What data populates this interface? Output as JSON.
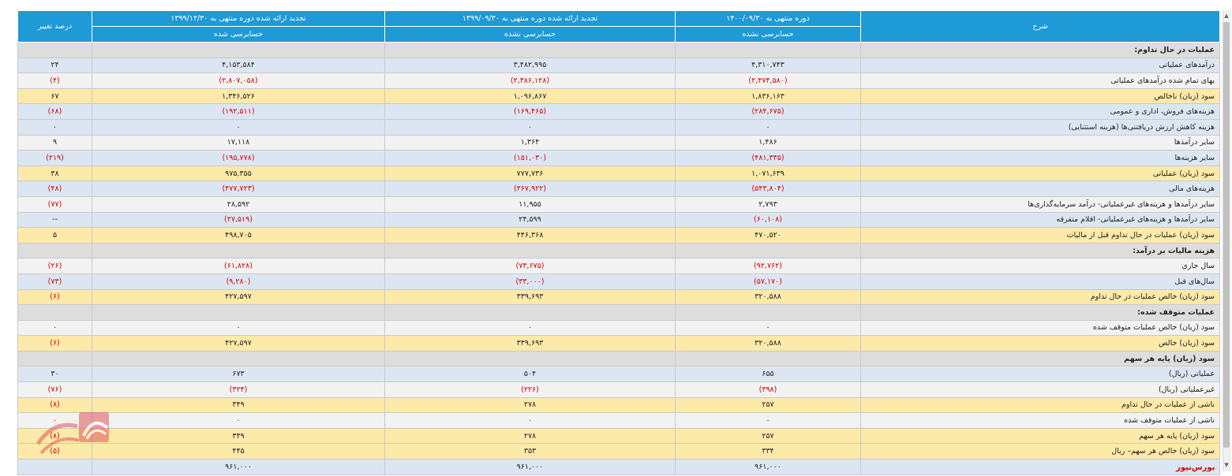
{
  "header": {
    "desc": "شرح",
    "col1_title": "دوره منتهی به ۱۴۰۰/۰۹/۳۰",
    "col1_sub": "حسابرسی نشده",
    "col2_title": "تجدید ارائه شده دوره منتهی به ۱۳۹۹/۰۹/۳۰",
    "col2_sub": "حسابرسی نشده",
    "col3_title": "تجدید ارائه شده دوره منتهی به ۱۳۹۹/۱۲/۳۰",
    "col3_sub": "حسابرسی شده",
    "col4_title": "درصد تغییر"
  },
  "rows": [
    {
      "type": "section",
      "desc": "عملیات در حال تداوم:",
      "c1": "",
      "c2": "",
      "c3": "",
      "c4": ""
    },
    {
      "type": "blue",
      "desc": "درآمدهای عملیاتی",
      "c1": "۴,۳۱۰,۷۴۳",
      "c2": "۳,۴۸۲,۹۹۵",
      "c3": "۴,۱۵۳,۵۸۴",
      "c4": "۲۴"
    },
    {
      "type": "white",
      "desc": "بهای تمام شده درآمدهای عملیاتی",
      "c1": "(۲,۴۷۴,۵۸۰)",
      "c2": "(۲,۳۸۶,۱۲۸)",
      "c3": "(۲,۸۰۷,۰۵۸)",
      "c4": "(۴)"
    },
    {
      "type": "gold",
      "desc": "سود (زیان) ناخالص",
      "c1": "۱,۸۳۶,۱۶۳",
      "c2": "۱,۰۹۶,۸۶۷",
      "c3": "۱,۳۴۶,۵۲۶",
      "c4": "۶۷"
    },
    {
      "type": "blue",
      "desc": "هزینه‌های فروش، اداری و عمومی",
      "c1": "(۲۸۴,۶۷۵)",
      "c2": "(۱۶۹,۴۶۵)",
      "c3": "(۱۹۲,۵۱۱)",
      "c4": "(۶۸)"
    },
    {
      "type": "blue",
      "desc": "هزینه کاهش ارزش دریافتنی‌ها (هزینه استثنایی)",
      "c1": "۰",
      "c2": "۰",
      "c3": "۰",
      "c4": "۰"
    },
    {
      "type": "white",
      "desc": "سایر درآمدها",
      "c1": "۱,۴۸۶",
      "c2": "۱,۳۶۴",
      "c3": "۱۷,۱۱۸",
      "c4": "۹"
    },
    {
      "type": "blue",
      "desc": "سایر هزینه‌ها",
      "c1": "(۴۸۱,۳۳۵)",
      "c2": "(۱۵۱,۰۳۰)",
      "c3": "(۱۹۵,۷۷۸)",
      "c4": "(۲۱۹)"
    },
    {
      "type": "gold",
      "desc": "سود (زیان) عملیاتی",
      "c1": "۱,۰۷۱,۶۳۹",
      "c2": "۷۷۷,۷۳۶",
      "c3": "۹۷۵,۳۵۵",
      "c4": "۳۸"
    },
    {
      "type": "blue",
      "desc": "هزینه‌های مالی",
      "c1": "(۵۴۳,۸۰۴)",
      "c2": "(۳۶۷,۹۲۲)",
      "c3": "(۴۷۷,۷۲۳)",
      "c4": "(۴۸)"
    },
    {
      "type": "white",
      "desc": "سایر درآمدها و هزینه‌های غیرعملیاتی- درآمد سرمایه‌گذاری‌ها",
      "c1": "۲,۷۹۳",
      "c2": "۱۱,۹۵۵",
      "c3": "۲۸,۵۹۲",
      "c4": "(۷۷)"
    },
    {
      "type": "blue",
      "desc": "سایر درآمدها و هزینه‌های غیرعملیاتی- اقلام متفرقه",
      "c1": "(۶۰,۱۰۸)",
      "c2": "۲۴,۵۹۹",
      "c3": "(۲۷,۵۱۹)",
      "c4": "--"
    },
    {
      "type": "gold",
      "desc": "سود (زیان) عملیات در حال تداوم قبل از مالیات",
      "c1": "۴۷۰,۵۲۰",
      "c2": "۴۴۶,۳۶۸",
      "c3": "۴۹۸,۷۰۵",
      "c4": "۵"
    },
    {
      "type": "section",
      "desc": "هزینه مالیات بر درآمد:",
      "c1": "",
      "c2": "",
      "c3": "",
      "c4": ""
    },
    {
      "type": "white",
      "desc": "سال جاری",
      "c1": "(۹۲,۷۶۲)",
      "c2": "(۷۳,۶۷۵)",
      "c3": "(۶۱,۸۲۸)",
      "c4": "(۲۶)"
    },
    {
      "type": "blue",
      "desc": "سال‌های قبل",
      "c1": "(۵۷,۱۷۰)",
      "c2": "(۳۳,۰۰۰)",
      "c3": "(۹,۲۸۰)",
      "c4": "(۷۳)"
    },
    {
      "type": "gold",
      "desc": "سود (زیان) خالص عملیات در حال تداوم",
      "c1": "۳۲۰,۵۸۸",
      "c2": "۳۳۹,۶۹۳",
      "c3": "۴۲۷,۵۹۷",
      "c4": "(۶)"
    },
    {
      "type": "section",
      "desc": "عملیات متوقف شده:",
      "c1": "",
      "c2": "",
      "c3": "",
      "c4": ""
    },
    {
      "type": "white",
      "desc": "سود (زیان) خالص عملیات متوقف شده",
      "c1": "۰",
      "c2": "۰",
      "c3": "۰",
      "c4": "۰"
    },
    {
      "type": "gold",
      "desc": "سود (زیان) خالص",
      "c1": "۳۲۰,۵۸۸",
      "c2": "۳۳۹,۶۹۳",
      "c3": "۴۲۷,۵۹۷",
      "c4": "(۶)"
    },
    {
      "type": "section",
      "desc": "سود (زیان) پایه هر سهم",
      "c1": "",
      "c2": "",
      "c3": "",
      "c4": ""
    },
    {
      "type": "blue",
      "desc": "عملیاتی (ریال)",
      "c1": "۶۵۵",
      "c2": "۵۰۴",
      "c3": "۶۷۳",
      "c4": "۳۰"
    },
    {
      "type": "white",
      "desc": "غیرعملیاتی (ریال)",
      "c1": "(۳۹۸)",
      "c2": "(۲۲۶)",
      "c3": "(۳۲۴)",
      "c4": "(۷۶)"
    },
    {
      "type": "gold",
      "desc": "ناشی از عملیات در حال تداوم",
      "c1": "۲۵۷",
      "c2": "۲۷۸",
      "c3": "۳۴۹",
      "c4": "(۸)"
    },
    {
      "type": "white",
      "desc": "ناشی از عملیات متوقف شده",
      "c1": "۰",
      "c2": "۰",
      "c3": "۰",
      "c4": "۰"
    },
    {
      "type": "gold",
      "desc": "سود (زیان) پایه هر سهم",
      "c1": "۲۵۷",
      "c2": "۲۷۸",
      "c3": "۳۴۹",
      "c4": "(۸)"
    },
    {
      "type": "gold",
      "desc": "سود (زیان) خالص هر سهم– ریال",
      "c1": "۳۳۴",
      "c2": "۳۵۳",
      "c3": "۴۴۵",
      "c4": "(۵)"
    },
    {
      "type": "last",
      "desc": "",
      "c1": "۹۶۱,۰۰۰",
      "c2": "۹۶۱,۰۰۰",
      "c3": "۹۶۱,۰۰۰",
      "c4": ""
    }
  ],
  "watermark": "بورس‌نیوز",
  "colors": {
    "header": "#1e9ad6",
    "negative": "#d40000",
    "blue_row": "#dce6f2",
    "gold_row": "#fde9a8",
    "section_row": "#dddddd"
  }
}
